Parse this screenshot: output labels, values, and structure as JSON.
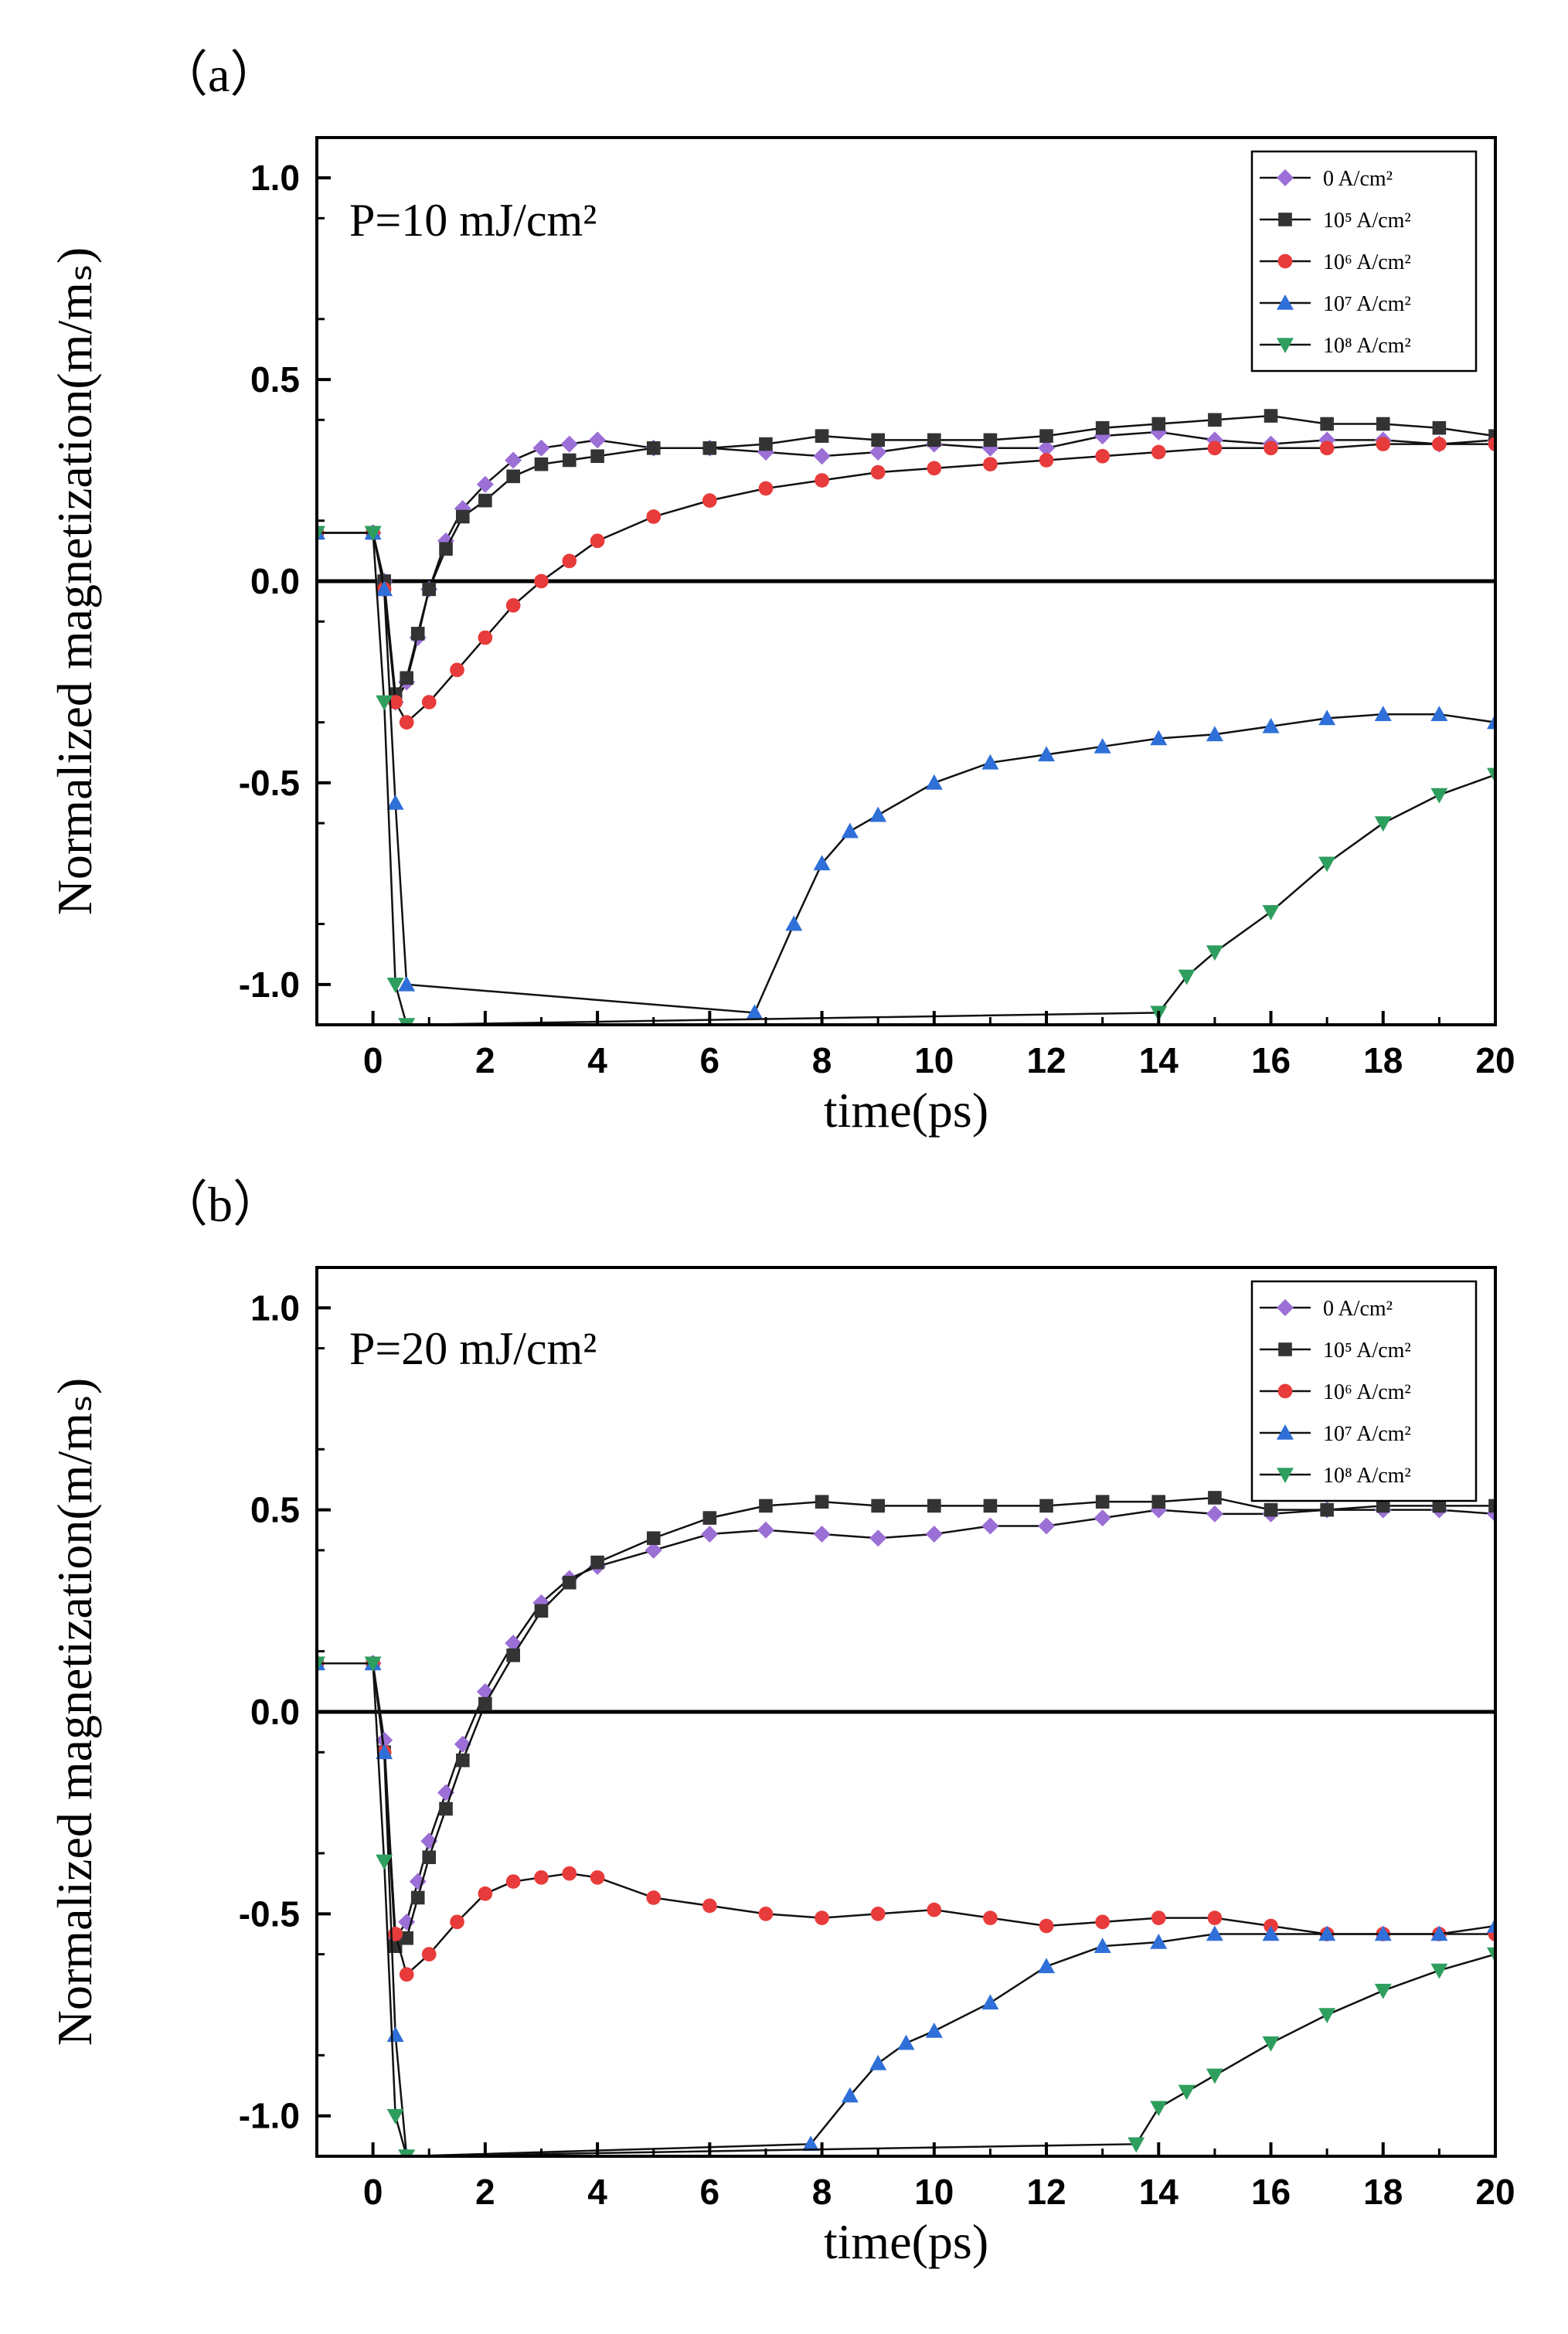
{
  "chart_data": [
    {
      "type": "line",
      "panel_label": "（a）",
      "annotation": "P=10 mJ/cm²",
      "xlabel": "time(ps)",
      "ylabel": "Normalized magnetization(m/mₛ)",
      "xlim": [
        -1,
        20
      ],
      "ylim": [
        -1.1,
        1.1
      ],
      "xticks": [
        "0",
        "2",
        "4",
        "6",
        "8",
        "10",
        "12",
        "14",
        "16",
        "18",
        "20"
      ],
      "yticks": [
        "1.0",
        "0.5",
        "0.0",
        "-0.5",
        "-1.0"
      ],
      "legend_position": "top-right",
      "series": [
        {
          "name": "0 A/cm²",
          "color": "#9b6fd6",
          "marker": "diamond",
          "x": [
            -1,
            0,
            0.2,
            0.4,
            0.6,
            0.8,
            1.0,
            1.3,
            1.6,
            2,
            2.5,
            3,
            3.5,
            4,
            5,
            6,
            7,
            8,
            9,
            10,
            11,
            12,
            13,
            14,
            15,
            16,
            17,
            18,
            19,
            20
          ],
          "y": [
            0.12,
            0.12,
            0.0,
            -0.3,
            -0.25,
            -0.14,
            -0.02,
            0.1,
            0.18,
            0.24,
            0.3,
            0.33,
            0.34,
            0.35,
            0.33,
            0.33,
            0.32,
            0.31,
            0.32,
            0.34,
            0.33,
            0.33,
            0.36,
            0.37,
            0.35,
            0.34,
            0.35,
            0.35,
            0.34,
            0.35
          ]
        },
        {
          "name": "10⁵ A/cm²",
          "color": "#333333",
          "marker": "square",
          "x": [
            -1,
            0,
            0.2,
            0.4,
            0.6,
            0.8,
            1.0,
            1.3,
            1.6,
            2,
            2.5,
            3,
            3.5,
            4,
            5,
            6,
            7,
            8,
            9,
            10,
            11,
            12,
            13,
            14,
            15,
            16,
            17,
            18,
            19,
            20
          ],
          "y": [
            0.12,
            0.12,
            0.0,
            -0.28,
            -0.24,
            -0.13,
            -0.02,
            0.08,
            0.16,
            0.2,
            0.26,
            0.29,
            0.3,
            0.31,
            0.33,
            0.33,
            0.34,
            0.36,
            0.35,
            0.35,
            0.35,
            0.36,
            0.38,
            0.39,
            0.4,
            0.41,
            0.39,
            0.39,
            0.38,
            0.36
          ]
        },
        {
          "name": "10⁶ A/cm²",
          "color": "#e83b3b",
          "marker": "circle",
          "x": [
            -1,
            0,
            0.2,
            0.4,
            0.6,
            1.0,
            1.5,
            2,
            2.5,
            3,
            3.5,
            4,
            5,
            6,
            7,
            8,
            9,
            10,
            11,
            12,
            13,
            14,
            15,
            16,
            17,
            18,
            19,
            20
          ],
          "y": [
            0.12,
            0.12,
            -0.02,
            -0.3,
            -0.35,
            -0.3,
            -0.22,
            -0.14,
            -0.06,
            0.0,
            0.05,
            0.1,
            0.16,
            0.2,
            0.23,
            0.25,
            0.27,
            0.28,
            0.29,
            0.3,
            0.31,
            0.32,
            0.33,
            0.33,
            0.33,
            0.34,
            0.34,
            0.34
          ]
        },
        {
          "name": "10⁷ A/cm²",
          "color": "#2f6fd8",
          "marker": "triangle-up",
          "x": [
            -1,
            0,
            0.2,
            0.4,
            0.6,
            6.8,
            7.5,
            8,
            8.5,
            9,
            10,
            11,
            12,
            13,
            14,
            15,
            16,
            17,
            18,
            19,
            20
          ],
          "y": [
            0.12,
            0.12,
            -0.02,
            -0.55,
            -1.0,
            -1.07,
            -0.85,
            -0.7,
            -0.62,
            -0.58,
            -0.5,
            -0.45,
            -0.43,
            -0.41,
            -0.39,
            -0.38,
            -0.36,
            -0.34,
            -0.33,
            -0.33,
            -0.35
          ]
        },
        {
          "name": "10⁸ A/cm²",
          "color": "#2e9e5e",
          "marker": "triangle-down",
          "x": [
            -1,
            0,
            0.2,
            0.4,
            0.6,
            14,
            14.5,
            15,
            16,
            17,
            18,
            19,
            20
          ],
          "y": [
            0.12,
            0.12,
            -0.3,
            -1.0,
            -1.1,
            -1.07,
            -0.98,
            -0.92,
            -0.82,
            -0.7,
            -0.6,
            -0.53,
            -0.48
          ]
        }
      ]
    },
    {
      "type": "line",
      "panel_label": "（b）",
      "annotation": "P=20 mJ/cm²",
      "xlabel": "time(ps)",
      "ylabel": "Normalized magnetization(m/mₛ)",
      "xlim": [
        -1,
        20
      ],
      "ylim": [
        -1.1,
        1.1
      ],
      "xticks": [
        "0",
        "2",
        "4",
        "6",
        "8",
        "10",
        "12",
        "14",
        "16",
        "18",
        "20"
      ],
      "yticks": [
        "1.0",
        "0.5",
        "0.0",
        "-0.5",
        "-1.0"
      ],
      "legend_position": "top-right",
      "series": [
        {
          "name": "0 A/cm²",
          "color": "#9b6fd6",
          "marker": "diamond",
          "x": [
            -1,
            0,
            0.2,
            0.4,
            0.6,
            0.8,
            1.0,
            1.3,
            1.6,
            2,
            2.5,
            3,
            3.5,
            4,
            5,
            6,
            7,
            8,
            9,
            10,
            11,
            12,
            13,
            14,
            15,
            16,
            17,
            18,
            19,
            20
          ],
          "y": [
            0.12,
            0.12,
            -0.07,
            -0.56,
            -0.52,
            -0.42,
            -0.32,
            -0.2,
            -0.08,
            0.05,
            0.17,
            0.27,
            0.33,
            0.36,
            0.4,
            0.44,
            0.45,
            0.44,
            0.43,
            0.44,
            0.46,
            0.46,
            0.48,
            0.5,
            0.49,
            0.49,
            0.5,
            0.5,
            0.5,
            0.49
          ]
        },
        {
          "name": "10⁵ A/cm²",
          "color": "#333333",
          "marker": "square",
          "x": [
            -1,
            0,
            0.2,
            0.4,
            0.6,
            0.8,
            1.0,
            1.3,
            1.6,
            2,
            2.5,
            3,
            3.5,
            4,
            5,
            6,
            7,
            8,
            9,
            10,
            11,
            12,
            13,
            14,
            15,
            16,
            17,
            18,
            19,
            20
          ],
          "y": [
            0.12,
            0.12,
            -0.1,
            -0.58,
            -0.56,
            -0.46,
            -0.36,
            -0.24,
            -0.12,
            0.02,
            0.14,
            0.25,
            0.32,
            0.37,
            0.43,
            0.48,
            0.51,
            0.52,
            0.51,
            0.51,
            0.51,
            0.51,
            0.52,
            0.52,
            0.53,
            0.5,
            0.5,
            0.51,
            0.51,
            0.51
          ]
        },
        {
          "name": "10⁶ A/cm²",
          "color": "#e83b3b",
          "marker": "circle",
          "x": [
            -1,
            0,
            0.2,
            0.4,
            0.6,
            1.0,
            1.5,
            2,
            2.5,
            3,
            3.5,
            4,
            5,
            6,
            7,
            8,
            9,
            10,
            11,
            12,
            13,
            14,
            15,
            16,
            17,
            18,
            19,
            20
          ],
          "y": [
            0.12,
            0.12,
            -0.1,
            -0.55,
            -0.65,
            -0.6,
            -0.52,
            -0.45,
            -0.42,
            -0.41,
            -0.4,
            -0.41,
            -0.46,
            -0.48,
            -0.5,
            -0.51,
            -0.5,
            -0.49,
            -0.51,
            -0.53,
            -0.52,
            -0.51,
            -0.51,
            -0.53,
            -0.55,
            -0.55,
            -0.55,
            -0.55
          ]
        },
        {
          "name": "10⁷ A/cm²",
          "color": "#2f6fd8",
          "marker": "triangle-up",
          "x": [
            -1,
            0,
            0.2,
            0.4,
            0.6,
            7.8,
            8.5,
            9,
            9.5,
            10,
            11,
            12,
            13,
            14,
            15,
            16,
            17,
            18,
            19,
            20
          ],
          "y": [
            0.12,
            0.12,
            -0.1,
            -0.8,
            -1.1,
            -1.07,
            -0.95,
            -0.87,
            -0.82,
            -0.79,
            -0.72,
            -0.63,
            -0.58,
            -0.57,
            -0.55,
            -0.55,
            -0.55,
            -0.55,
            -0.55,
            -0.53
          ]
        },
        {
          "name": "10⁸ A/cm²",
          "color": "#2e9e5e",
          "marker": "triangle-down",
          "x": [
            -1,
            0,
            0.2,
            0.4,
            0.6,
            13.6,
            14,
            14.5,
            15,
            16,
            17,
            18,
            19,
            20
          ],
          "y": [
            0.12,
            0.12,
            -0.37,
            -1.0,
            -1.1,
            -1.07,
            -0.98,
            -0.94,
            -0.9,
            -0.82,
            -0.75,
            -0.69,
            -0.64,
            -0.6
          ]
        }
      ]
    }
  ]
}
